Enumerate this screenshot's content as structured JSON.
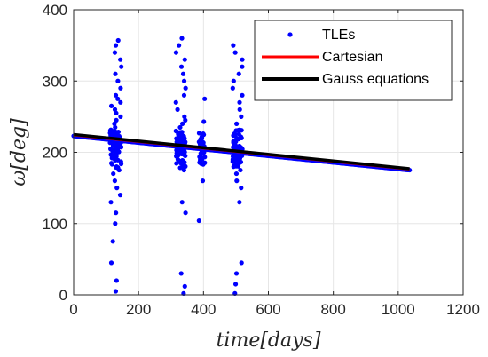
{
  "chart_data": {
    "type": "scatter",
    "xlabel": "time[days]",
    "ylabel": "ω[deg]",
    "xlim": [
      0,
      1200
    ],
    "ylim": [
      0,
      400
    ],
    "xticks": [
      0,
      200,
      400,
      600,
      800,
      1000,
      1200
    ],
    "yticks": [
      0,
      100,
      200,
      300,
      400
    ],
    "grid": true,
    "legend_position": "top-right",
    "series": [
      {
        "name": "TLEs",
        "kind": "markers",
        "color": "#0000ff",
        "clusters": [
          {
            "x_range": [
              112,
              148
            ],
            "y_points": [
              5,
              20,
              45,
              75,
              100,
              115,
              130,
              140,
              150,
              160,
              170,
              175,
              180,
              185,
              190,
              195,
              200,
              205,
              208,
              210,
              212,
              214,
              216,
              218,
              220,
              222,
              224,
              226,
              228,
              230,
              235,
              240,
              245,
              250,
              255,
              260,
              265,
              270,
              275,
              280,
              290,
              300,
              310,
              320,
              330,
              340,
              350,
              357
            ]
          },
          {
            "x_range": [
              315,
              345
            ],
            "y_points": [
              2,
              12,
              30,
              115,
              130,
              175,
              180,
              185,
              190,
              195,
              198,
              200,
              202,
              204,
              206,
              208,
              210,
              212,
              214,
              216,
              218,
              220,
              222,
              225,
              230,
              235,
              240,
              245,
              250,
              260,
              270,
              280,
              290,
              300,
              310,
              320,
              330,
              340,
              350,
              360
            ]
          },
          {
            "x_range": [
              385,
              405
            ],
            "y_points": [
              104,
              160,
              185,
              190,
              195,
              200,
              205,
              210,
              215,
              220,
              225,
              243,
              275
            ]
          },
          {
            "x_range": [
              490,
              520
            ],
            "y_points": [
              2,
              15,
              30,
              45,
              130,
              150,
              160,
              170,
              175,
              180,
              185,
              188,
              190,
              192,
              194,
              196,
              198,
              200,
              202,
              204,
              206,
              208,
              210,
              215,
              220,
              225,
              230,
              240,
              250,
              260,
              270,
              280,
              290,
              300,
              310,
              320,
              330,
              340,
              350
            ]
          }
        ],
        "trend": {
          "x_start": 0,
          "x_end": 1035,
          "y_start": 223,
          "y_end": 175
        }
      },
      {
        "name": "Cartesian",
        "kind": "line",
        "color": "#ff0000",
        "x": [
          0,
          1035
        ],
        "y": [
          224,
          176
        ]
      },
      {
        "name": "Gauss equations",
        "kind": "line",
        "color": "#000000",
        "x": [
          0,
          1035
        ],
        "y": [
          225,
          177
        ]
      }
    ]
  }
}
